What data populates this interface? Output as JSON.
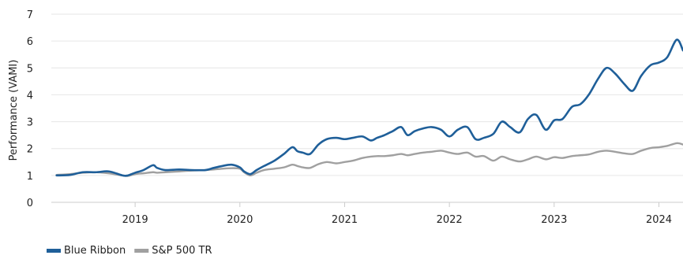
{
  "chart_data": {
    "type": "line",
    "title": "",
    "xlabel": "",
    "ylabel": "Performance (VAMI)",
    "ylim": [
      0,
      7
    ],
    "yticks": [
      "0",
      "1",
      "2",
      "3",
      "4",
      "5",
      "6",
      "7"
    ],
    "xticks": [
      "2019",
      "2020",
      "2021",
      "2022",
      "2023",
      "2024"
    ],
    "xlim": [
      2018.2,
      2024.23
    ],
    "grid": true,
    "legend_position": "bottom-left",
    "series": [
      {
        "name": "Blue Ribbon",
        "color": "#1f5f99",
        "x": [
          2018.25,
          2018.38,
          2018.5,
          2018.63,
          2018.75,
          2018.88,
          2018.93,
          2019.0,
          2019.08,
          2019.17,
          2019.21,
          2019.29,
          2019.42,
          2019.54,
          2019.67,
          2019.75,
          2019.83,
          2019.92,
          2020.0,
          2020.04,
          2020.1,
          2020.16,
          2020.23,
          2020.33,
          2020.42,
          2020.5,
          2020.55,
          2020.6,
          2020.67,
          2020.75,
          2020.83,
          2020.92,
          2021.0,
          2021.08,
          2021.17,
          2021.25,
          2021.31,
          2021.38,
          2021.46,
          2021.54,
          2021.6,
          2021.67,
          2021.75,
          2021.83,
          2021.92,
          2022.0,
          2022.08,
          2022.17,
          2022.25,
          2022.33,
          2022.42,
          2022.5,
          2022.58,
          2022.67,
          2022.75,
          2022.83,
          2022.92,
          2023.0,
          2023.08,
          2023.17,
          2023.25,
          2023.33,
          2023.42,
          2023.5,
          2023.58,
          2023.67,
          2023.75,
          2023.83,
          2023.92,
          2024.0,
          2024.08,
          2024.17,
          2024.23
        ],
        "y": [
          1.0,
          1.02,
          1.12,
          1.12,
          1.15,
          1.0,
          1.0,
          1.1,
          1.2,
          1.38,
          1.28,
          1.2,
          1.22,
          1.2,
          1.2,
          1.28,
          1.35,
          1.4,
          1.3,
          1.15,
          1.05,
          1.2,
          1.35,
          1.55,
          1.8,
          2.05,
          1.9,
          1.85,
          1.8,
          2.15,
          2.35,
          2.4,
          2.35,
          2.4,
          2.45,
          2.3,
          2.4,
          2.5,
          2.65,
          2.8,
          2.5,
          2.65,
          2.75,
          2.8,
          2.7,
          2.45,
          2.7,
          2.8,
          2.35,
          2.4,
          2.55,
          3.0,
          2.8,
          2.6,
          3.1,
          3.25,
          2.7,
          3.05,
          3.1,
          3.55,
          3.65,
          4.0,
          4.6,
          5.0,
          4.8,
          4.4,
          4.15,
          4.7,
          5.1,
          5.2,
          5.4,
          6.05,
          5.65
        ]
      },
      {
        "name": "S&P 500 TR",
        "color": "#a0a0a0",
        "x": [
          2018.25,
          2018.38,
          2018.5,
          2018.63,
          2018.75,
          2018.88,
          2018.93,
          2019.0,
          2019.08,
          2019.17,
          2019.21,
          2019.29,
          2019.42,
          2019.54,
          2019.67,
          2019.75,
          2019.83,
          2019.92,
          2020.0,
          2020.04,
          2020.1,
          2020.16,
          2020.23,
          2020.33,
          2020.42,
          2020.5,
          2020.55,
          2020.6,
          2020.67,
          2020.75,
          2020.83,
          2020.92,
          2021.0,
          2021.08,
          2021.17,
          2021.25,
          2021.31,
          2021.38,
          2021.46,
          2021.54,
          2021.6,
          2021.67,
          2021.75,
          2021.83,
          2021.92,
          2022.0,
          2022.08,
          2022.17,
          2022.25,
          2022.33,
          2022.42,
          2022.5,
          2022.58,
          2022.67,
          2022.75,
          2022.83,
          2022.92,
          2023.0,
          2023.08,
          2023.17,
          2023.25,
          2023.33,
          2023.42,
          2023.5,
          2023.58,
          2023.67,
          2023.75,
          2023.83,
          2023.92,
          2024.0,
          2024.08,
          2024.17,
          2024.23
        ],
        "y": [
          1.02,
          1.05,
          1.1,
          1.12,
          1.08,
          1.0,
          0.98,
          1.05,
          1.08,
          1.12,
          1.1,
          1.12,
          1.15,
          1.18,
          1.2,
          1.22,
          1.25,
          1.27,
          1.25,
          1.12,
          1.0,
          1.1,
          1.2,
          1.25,
          1.3,
          1.4,
          1.35,
          1.3,
          1.28,
          1.42,
          1.5,
          1.45,
          1.5,
          1.55,
          1.65,
          1.7,
          1.72,
          1.72,
          1.75,
          1.8,
          1.75,
          1.8,
          1.85,
          1.88,
          1.92,
          1.85,
          1.8,
          1.85,
          1.7,
          1.72,
          1.55,
          1.7,
          1.6,
          1.52,
          1.6,
          1.7,
          1.6,
          1.68,
          1.65,
          1.72,
          1.75,
          1.78,
          1.88,
          1.92,
          1.88,
          1.82,
          1.8,
          1.92,
          2.02,
          2.05,
          2.1,
          2.2,
          2.15
        ]
      }
    ]
  }
}
